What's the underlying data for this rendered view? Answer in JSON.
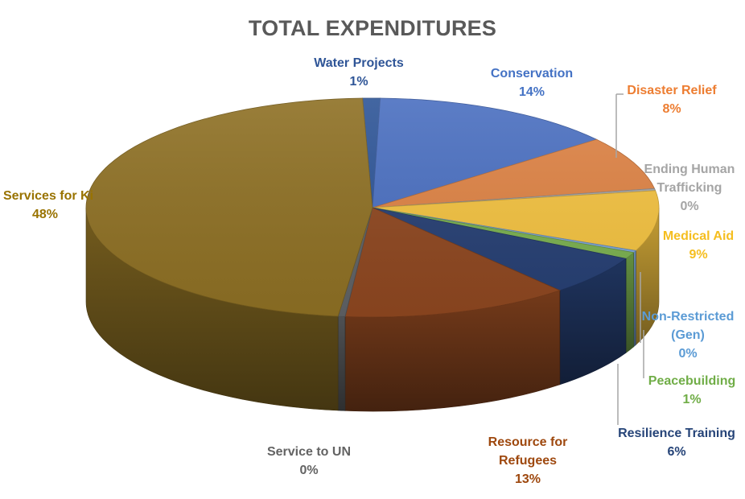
{
  "chart_data": {
    "type": "pie",
    "title": "TOTAL EXPENDITURES",
    "style": "3d-exploded-none",
    "slices": [
      {
        "name": "Water Projects",
        "value": 1,
        "label": "1%",
        "color": "#2E5597",
        "label_color": "#2F5597"
      },
      {
        "name": "Conservation",
        "value": 14,
        "label": "14%",
        "color": "#4A6FC0",
        "label_color": "#4472C4"
      },
      {
        "name": "Disaster Relief",
        "value": 8,
        "label": "8%",
        "color": "#DD8244",
        "label_color": "#ED7D31"
      },
      {
        "name": "Ending Human Trafficking",
        "value": 0.3,
        "label": "0%",
        "color": "#A5A5A5",
        "label_color": "#A5A5A5"
      },
      {
        "name": "Medical Aid",
        "value": 9,
        "label": "9%",
        "color": "#F2C140",
        "label_color": "#F5BE1F"
      },
      {
        "name": "Non-Restricted (Gen)",
        "value": 0.3,
        "label": "0%",
        "color": "#7DA6DA",
        "label_color": "#5B9BD5"
      },
      {
        "name": "Peacebuilding",
        "value": 1,
        "label": "1%",
        "color": "#7AB04F",
        "label_color": "#70AD47"
      },
      {
        "name": "Resilience Training",
        "value": 6,
        "label": "6%",
        "color": "#263F73",
        "label_color": "#264478"
      },
      {
        "name": "Resource for Refugees",
        "value": 13,
        "label": "13%",
        "color": "#8E4720",
        "label_color": "#9E480E"
      },
      {
        "name": "Service to UN",
        "value": 0.4,
        "label": "0%",
        "color": "#5F6265",
        "label_color": "#636363"
      },
      {
        "name": "Services for Kids",
        "value": 48,
        "label": "48%",
        "color": "#8E7024",
        "label_color": "#997300"
      }
    ]
  },
  "labels": {
    "water_projects": {
      "line1": "Water Projects",
      "pct": "1%"
    },
    "conservation": {
      "line1": "Conservation",
      "pct": "14%"
    },
    "disaster_relief": {
      "line1": "Disaster Relief",
      "pct": "8%"
    },
    "ending_trafficking": {
      "line1": "Ending Human",
      "line2": "Trafficking",
      "pct": "0%"
    },
    "medical_aid": {
      "line1": "Medical Aid",
      "pct": "9%"
    },
    "non_restricted": {
      "line1": "Non-Restricted",
      "line2": "(Gen)",
      "pct": "0%"
    },
    "peacebuilding": {
      "line1": "Peacebuilding",
      "pct": "1%"
    },
    "resilience_training": {
      "line1": "Resilience Training",
      "pct": "6%"
    },
    "resource_refugees": {
      "line1": "Resource for",
      "line2": "Refugees",
      "pct": "13%"
    },
    "service_un": {
      "line1": "Service to UN",
      "pct": "0%"
    },
    "services_kids": {
      "line1": "Services for Ki",
      "pct": "48%"
    }
  }
}
